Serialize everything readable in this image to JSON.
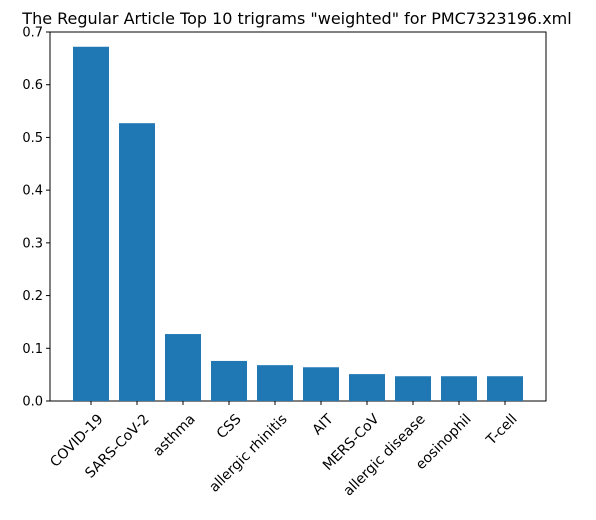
{
  "chart_data": {
    "type": "bar",
    "title": "The Regular Article Top 10 trigrams \"weighted\"  for PMC7323196.xml",
    "xlabel": "",
    "ylabel": "",
    "categories": [
      "COVID-19",
      "SARS-CoV-2",
      "asthma",
      "CSS",
      "allergic rhinitis",
      "AIT",
      "MERS-CoV",
      "allergic disease",
      "eosinophil",
      "T-cell"
    ],
    "values": [
      0.672,
      0.527,
      0.127,
      0.076,
      0.068,
      0.064,
      0.051,
      0.047,
      0.047,
      0.047
    ],
    "ylim": [
      0,
      0.7
    ],
    "yticks": [
      "0.0",
      "0.1",
      "0.2",
      "0.3",
      "0.4",
      "0.5",
      "0.6",
      "0.7"
    ],
    "bar_color": "#1f77b4",
    "grid": false,
    "legend": "none"
  }
}
